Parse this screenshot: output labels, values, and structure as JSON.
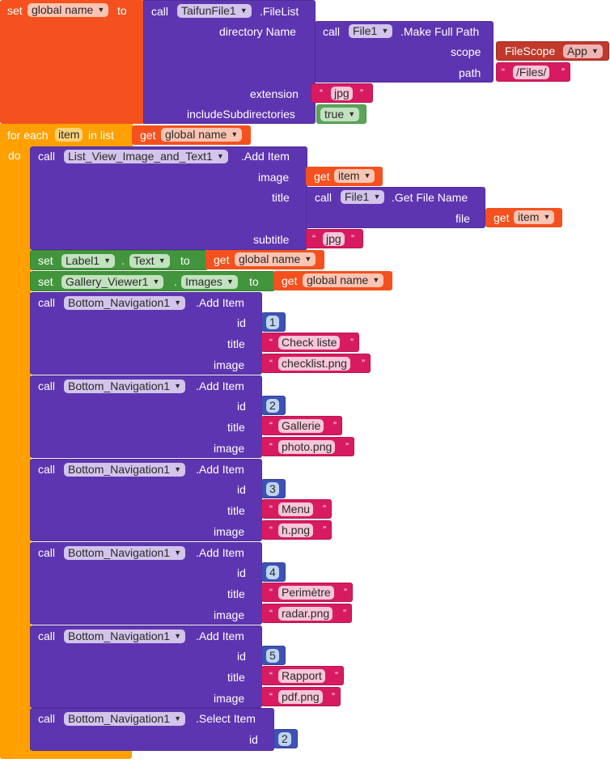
{
  "colors": {
    "variables": "#f4511e",
    "procedures_components": "#5e35b1",
    "setters": "#43953d",
    "control": "#ffa000",
    "text": "#d81b60",
    "math": "#3f51b5",
    "logic": "#5ba55b",
    "helper": "#c0392b"
  },
  "kw": {
    "set": "set",
    "to": "to",
    "call": "call",
    "get": "get",
    "for_each": "for each",
    "in_list": "in list",
    "do": "do",
    "dot": ".",
    "open_quote": "“",
    "close_quote": "”"
  },
  "setvar": {
    "var_name": "global name",
    "component": "TaifunFile1",
    "method": ".FileList",
    "directory_label": "directory Name",
    "make_path": {
      "component": "File1",
      "method": ".Make Full Path",
      "scope_label": "scope",
      "helper": "FileScope",
      "helper_value": "App",
      "path_label": "path",
      "path_value": "/Files/"
    },
    "extension_label": "extension",
    "extension_value": "jpg",
    "include_label": "includeSubdirectories",
    "include_value": "true"
  },
  "loop": {
    "item_var": "item",
    "list_var": "global name"
  },
  "add_item": {
    "component": "List_View_Image_and_Text1",
    "method": ".Add Item",
    "image_label": "image",
    "image_var": "item",
    "title_label": "title",
    "file_name": {
      "component": "File1",
      "method": ".Get File Name",
      "file_label": "file",
      "file_var": "item"
    },
    "subtitle_label": "subtitle",
    "subtitle_value": "jpg"
  },
  "set_label": {
    "component": "Label1",
    "property": "Text",
    "var": "global name"
  },
  "set_gallery": {
    "component": "Gallery_Viewer1",
    "property": "Images",
    "var": "global name"
  },
  "nav_items": [
    {
      "component": "Bottom_Navigation1",
      "method": ".Add Item",
      "id_label": "id",
      "id": "1",
      "title_label": "title",
      "title": "Check liste",
      "image_label": "image",
      "image": "checklist.png"
    },
    {
      "component": "Bottom_Navigation1",
      "method": ".Add Item",
      "id_label": "id",
      "id": "2",
      "title_label": "title",
      "title": "Gallerie",
      "image_label": "image",
      "image": "photo.png"
    },
    {
      "component": "Bottom_Navigation1",
      "method": ".Add Item",
      "id_label": "id",
      "id": "3",
      "title_label": "title",
      "title": "Menu",
      "image_label": "image",
      "image": "h.png"
    },
    {
      "component": "Bottom_Navigation1",
      "method": ".Add Item",
      "id_label": "id",
      "id": "4",
      "title_label": "title",
      "title": "Perimètre",
      "image_label": "image",
      "image": "radar.png"
    },
    {
      "component": "Bottom_Navigation1",
      "method": ".Add Item",
      "id_label": "id",
      "id": "5",
      "title_label": "title",
      "title": "Rapport",
      "image_label": "image",
      "image": "pdf.png"
    }
  ],
  "select_item": {
    "component": "Bottom_Navigation1",
    "method": ".Select Item",
    "id_label": "id",
    "id": "2"
  },
  "icons": {
    "dropdown": "dropdown-caret-icon"
  }
}
